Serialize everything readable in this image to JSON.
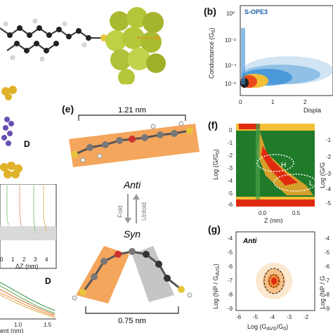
{
  "figure": {
    "panel_b": {
      "letter": "(b)",
      "series_label": "S-OPE3",
      "ylabel": "Conductance (G",
      "ylabel_sub": "0",
      "ylabel_end": ")",
      "xlabel": "Displa",
      "yticks": [
        "10⁰",
        "10⁻²",
        "10⁻⁴",
        "10⁻⁶"
      ],
      "xticks": [
        "0",
        "1",
        "2"
      ]
    },
    "panel_d": {
      "label": "D",
      "inset_xlabel": "ΔZ (nm)",
      "inset_xticks": [
        "0",
        "1",
        "2",
        "3",
        "4"
      ],
      "curve_label": "D",
      "xlabel_fragment": "ent (nm)",
      "xticks": [
        "1.0",
        "1.5"
      ]
    },
    "panel_e": {
      "letter": "(e)",
      "top_length": "1.21 nm",
      "state_top": "Anti",
      "state_bottom": "Syn",
      "arrow_left": "Fold",
      "arrow_right": "Unfold",
      "bottom_length": "0.75 nm"
    },
    "panel_f": {
      "letter": "(f)",
      "ylabel": "Log (G/G",
      "ylabel_sub": "0",
      "ylabel_end": ")",
      "xlabel": "Z (nm)",
      "yticks": [
        "0",
        "-1",
        "-2",
        "-3",
        "-4",
        "-5",
        "-6"
      ],
      "xticks": [
        "0.0",
        "0.5"
      ],
      "region_h": "H",
      "region_l": "L",
      "right_ylabel": "Log (G/G",
      "right_yticks": [
        "-1",
        "-2",
        "-3",
        "-4",
        "-5"
      ]
    },
    "panel_g": {
      "letter": "(g)",
      "state": "Anti",
      "ylabel": "Log (NP / G",
      "ylabel_sub": "AVG",
      "ylabel_end": ")",
      "xlabel": "Log (G",
      "xlabel_sub1": "AVG",
      "xlabel_mid": "/G",
      "xlabel_sub2": "0",
      "xlabel_end": ")",
      "yticks": [
        "-4",
        "-5",
        "-6",
        "-7",
        "-8",
        "-9"
      ],
      "xticks": [
        "-6",
        "-5",
        "-4",
        "-3",
        "-2"
      ],
      "right_ylabel": "Log (NP / G",
      "right_yticks": [
        "-4",
        "-5",
        "-6",
        "-7",
        "-8",
        "-9"
      ]
    },
    "colors": {
      "gold_cluster": "#b6c63a",
      "orange_highlight": "#f39c4a",
      "green_map": "#1f7a2a",
      "red_map": "#e02a10",
      "blue_scatter": "#3b8fd6",
      "purple_atoms": "#6a4fb0"
    }
  }
}
